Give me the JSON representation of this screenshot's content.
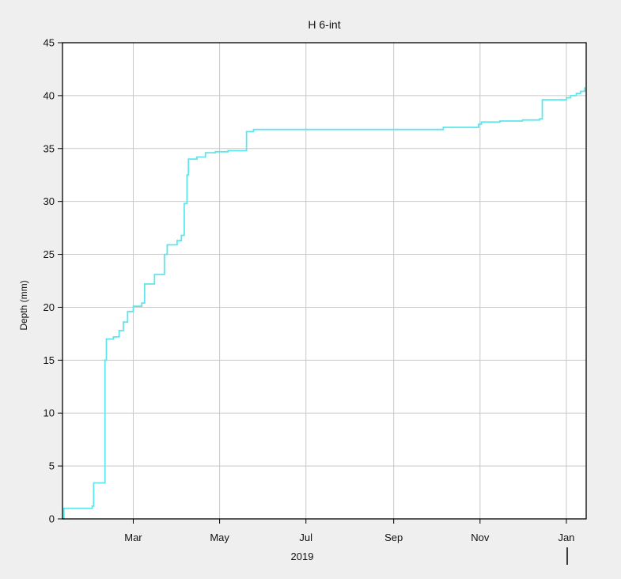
{
  "chart_data": {
    "type": "line",
    "title": "H 6-int",
    "xlabel": "",
    "ylabel": "Depth (mm)",
    "year_label": "2019",
    "ylim": [
      0,
      45
    ],
    "xlim": [
      "2019-01-10",
      "2020-01-15"
    ],
    "grid": true,
    "legend": "none",
    "line_color": "#5ee6ec",
    "y_ticks": [
      0,
      5,
      10,
      15,
      20,
      25,
      30,
      35,
      40,
      45
    ],
    "x_ticks": [
      {
        "date": "2019-03-01",
        "label": "Mar"
      },
      {
        "date": "2019-05-01",
        "label": "May"
      },
      {
        "date": "2019-07-01",
        "label": "Jul"
      },
      {
        "date": "2019-09-01",
        "label": "Sep"
      },
      {
        "date": "2019-11-01",
        "label": "Nov"
      },
      {
        "date": "2020-01-01",
        "label": "Jan"
      }
    ],
    "series": [
      {
        "step": true,
        "x": [
          "2019-01-10",
          "2019-01-11",
          "2019-01-31",
          "2019-02-01",
          "2019-02-09",
          "2019-02-10",
          "2019-02-15",
          "2019-02-19",
          "2019-02-22",
          "2019-02-25",
          "2019-02-27",
          "2019-03-01",
          "2019-03-07",
          "2019-03-09",
          "2019-03-16",
          "2019-03-23",
          "2019-03-25",
          "2019-03-27",
          "2019-04-01",
          "2019-04-04",
          "2019-04-06",
          "2019-04-08",
          "2019-04-09",
          "2019-04-15",
          "2019-04-21",
          "2019-04-28",
          "2019-05-04",
          "2019-05-07",
          "2019-05-10",
          "2019-05-14",
          "2019-05-20",
          "2019-05-25",
          "2019-05-27",
          "2019-06-01",
          "2019-10-06",
          "2019-10-31",
          "2019-11-02",
          "2019-11-15",
          "2019-12-01",
          "2019-12-13",
          "2019-12-15",
          "2020-01-01",
          "2020-01-04",
          "2020-01-08",
          "2020-01-11",
          "2020-01-14"
        ],
        "values": [
          0.0,
          1.0,
          1.2,
          3.4,
          15.0,
          17.0,
          17.2,
          17.8,
          18.6,
          19.6,
          19.6,
          20.1,
          20.4,
          22.2,
          23.1,
          25.0,
          25.9,
          25.9,
          26.3,
          26.8,
          29.8,
          32.5,
          34.0,
          34.2,
          34.6,
          34.7,
          34.7,
          34.8,
          34.8,
          34.8,
          36.6,
          36.8,
          36.8,
          36.8,
          37.0,
          37.3,
          37.5,
          37.6,
          37.7,
          37.8,
          39.6,
          39.8,
          40.0,
          40.2,
          40.4,
          40.8
        ]
      }
    ]
  }
}
